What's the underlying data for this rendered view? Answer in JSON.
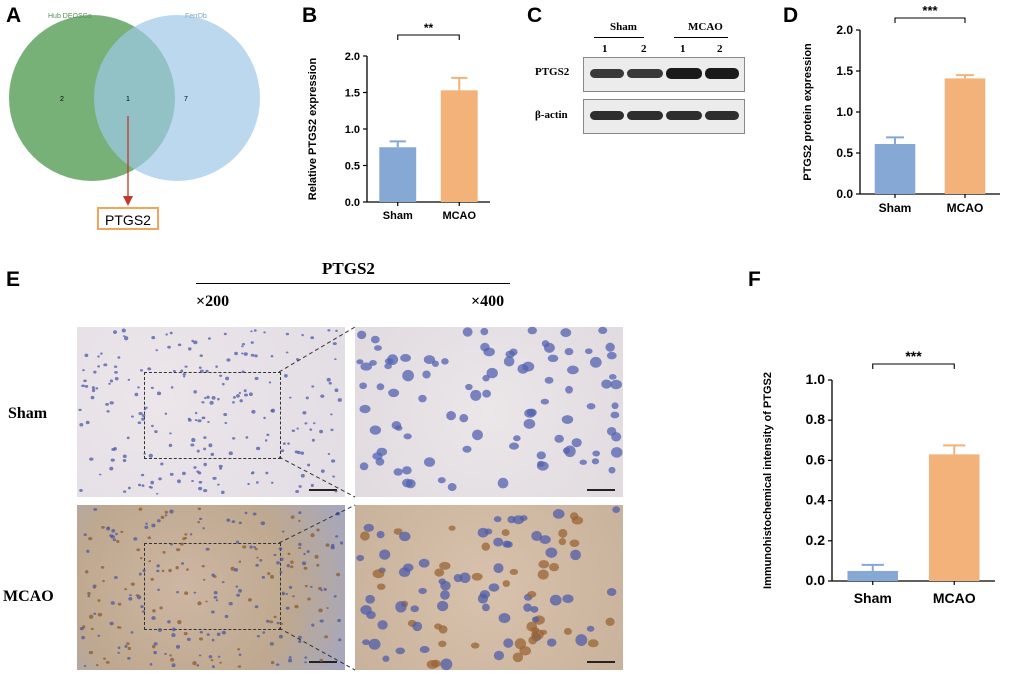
{
  "panels": {
    "A": "A",
    "B": "B",
    "C": "C",
    "D": "D",
    "E": "E",
    "F": "F"
  },
  "venn": {
    "left_set": "Hub DEOSGs",
    "right_set": "FerrDb",
    "left_only": "2",
    "overlap": "1",
    "right_only": "7",
    "result": "PTGS2",
    "colors": {
      "left": "#5fa35f",
      "right": "#9ec8e8",
      "arrow": "#c0392b",
      "box": "#f0a45c"
    }
  },
  "blot": {
    "group_sham": "Sham",
    "group_mcao": "MCAO",
    "lanes": [
      "1",
      "2",
      "1",
      "2"
    ],
    "rows": [
      "PTGS2",
      "β-actin"
    ]
  },
  "ihc": {
    "marker": "PTGS2",
    "mag_low": "×200",
    "mag_high": "×400",
    "rows": [
      "Sham",
      "MCAO"
    ]
  },
  "chart_data": [
    {
      "panel": "B",
      "type": "bar",
      "categories": [
        "Sham",
        "MCAO"
      ],
      "values": [
        0.75,
        1.53
      ],
      "errors": [
        0.08,
        0.17
      ],
      "ylabel": "Relative PTGS2 expression",
      "ylim": [
        0,
        2.0
      ],
      "yticks": [
        "0.0",
        "0.5",
        "1.0",
        "1.5",
        "2.0"
      ],
      "significance": "**",
      "colors": [
        "#86a8d4",
        "#f2b27a"
      ]
    },
    {
      "panel": "D",
      "type": "bar",
      "categories": [
        "Sham",
        "MCAO"
      ],
      "values": [
        0.61,
        1.41
      ],
      "errors": [
        0.08,
        0.04
      ],
      "ylabel": "PTGS2 protein expression",
      "ylim": [
        0,
        2.0
      ],
      "yticks": [
        "0.0",
        "0.5",
        "1.0",
        "1.5",
        "2.0"
      ],
      "significance": "***",
      "colors": [
        "#86a8d4",
        "#f2b27a"
      ]
    },
    {
      "panel": "F",
      "type": "bar",
      "categories": [
        "Sham",
        "MCAO"
      ],
      "values": [
        0.05,
        0.63
      ],
      "errors": [
        0.03,
        0.045
      ],
      "ylabel": "Immunohistochemical intensity of PTGS2",
      "ylim": [
        0,
        1.0
      ],
      "yticks": [
        "0.0",
        "0.2",
        "0.4",
        "0.6",
        "0.8",
        "1.0"
      ],
      "significance": "***",
      "colors": [
        "#86a8d4",
        "#f2b27a"
      ]
    }
  ]
}
